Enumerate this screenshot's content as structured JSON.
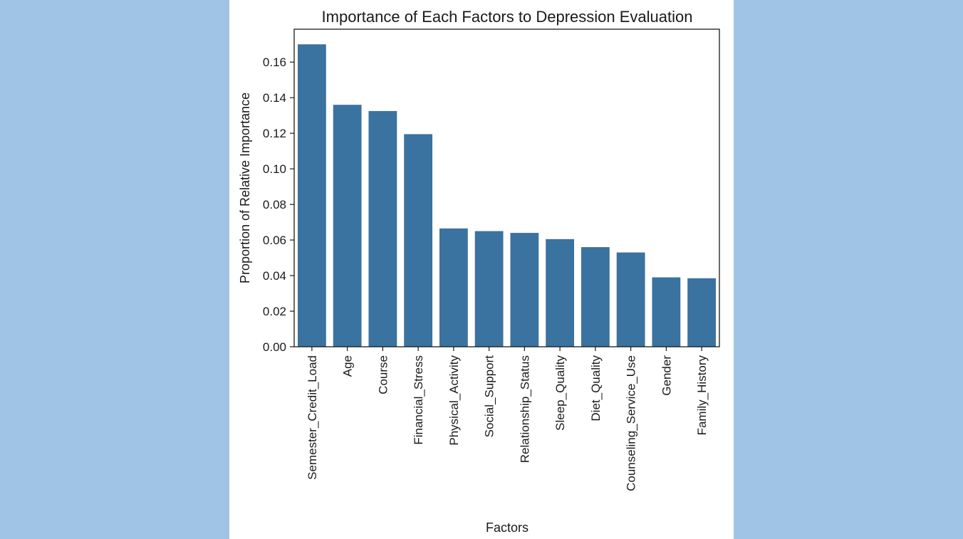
{
  "chart_data": {
    "type": "bar",
    "title": "Importance of Each Factors to Depression Evaluation",
    "xlabel": "Factors",
    "ylabel": "Proportion of Relative Importance",
    "categories": [
      "Semester_Credit_Load",
      "Age",
      "Course",
      "Financial_Stress",
      "Physical_Activity",
      "Social_Support",
      "Relationship_Status",
      "Sleep_Quality",
      "Diet_Quality",
      "Counseling_Service_Use",
      "Gender",
      "Family_History"
    ],
    "values": [
      0.17,
      0.136,
      0.1325,
      0.1195,
      0.0665,
      0.065,
      0.064,
      0.0605,
      0.056,
      0.053,
      0.039,
      0.0385
    ],
    "yticks": [
      "0.00",
      "0.02",
      "0.04",
      "0.06",
      "0.08",
      "0.10",
      "0.12",
      "0.14",
      "0.16"
    ],
    "ylim": [
      0,
      0.1785
    ],
    "grid": false,
    "bar_color": "#3a72a0"
  },
  "colors": {
    "background": "#a0c4e6",
    "panel": "#ffffff"
  }
}
